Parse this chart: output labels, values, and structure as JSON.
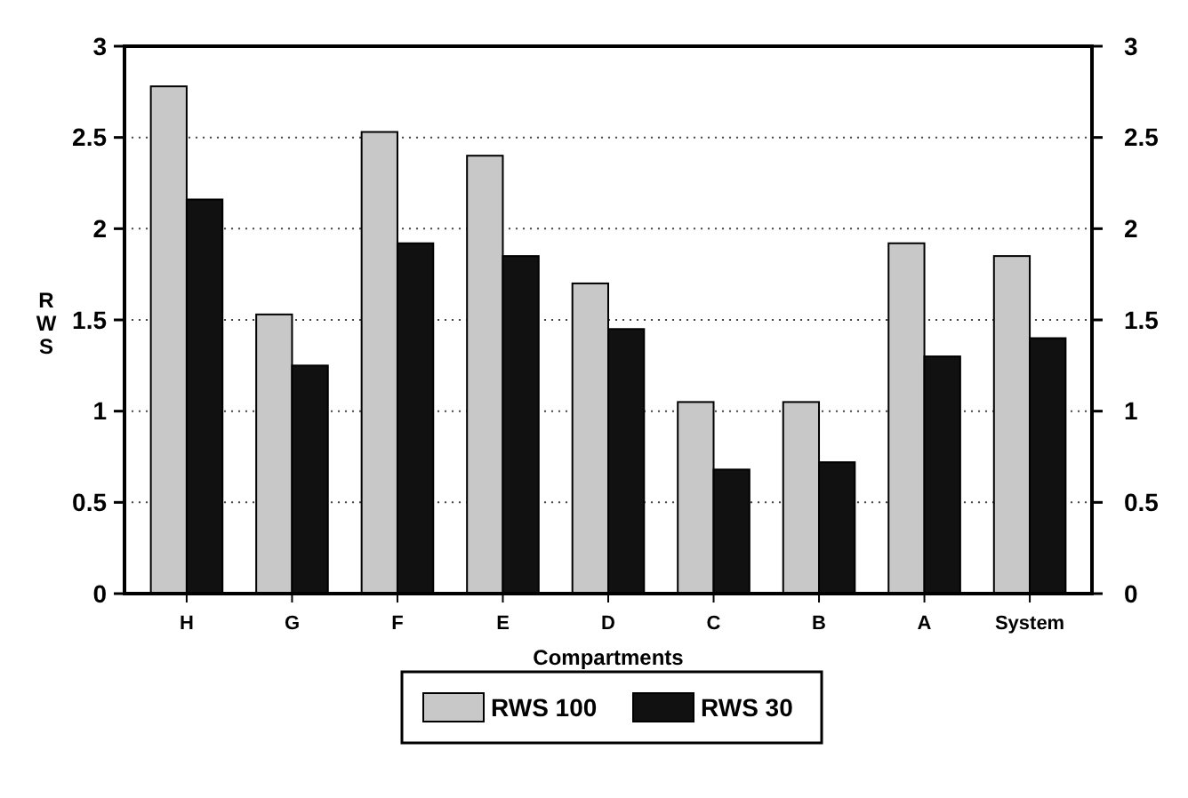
{
  "chart_data": {
    "type": "bar",
    "xlabel": "Compartments",
    "ylabel": "RWS",
    "categories": [
      "H",
      "G",
      "F",
      "E",
      "D",
      "C",
      "B",
      "A",
      "System"
    ],
    "series": [
      {
        "name": "RWS 100",
        "color": "#c8c8c8",
        "values": [
          2.78,
          1.53,
          2.53,
          2.4,
          1.7,
          1.05,
          1.05,
          1.92,
          1.85
        ]
      },
      {
        "name": "RWS 30",
        "color": "#111111",
        "values": [
          2.16,
          1.25,
          1.92,
          1.85,
          1.45,
          0.68,
          0.72,
          1.3,
          1.4
        ]
      }
    ],
    "ylim": [
      0,
      3
    ],
    "yticks": [
      0,
      0.5,
      1,
      1.5,
      2,
      2.5,
      3
    ],
    "y2lim": [
      0,
      3
    ],
    "y2ticks": [
      0,
      0.5,
      1,
      1.5,
      2,
      2.5,
      3
    ],
    "grid": "y",
    "legend": "bottom"
  }
}
